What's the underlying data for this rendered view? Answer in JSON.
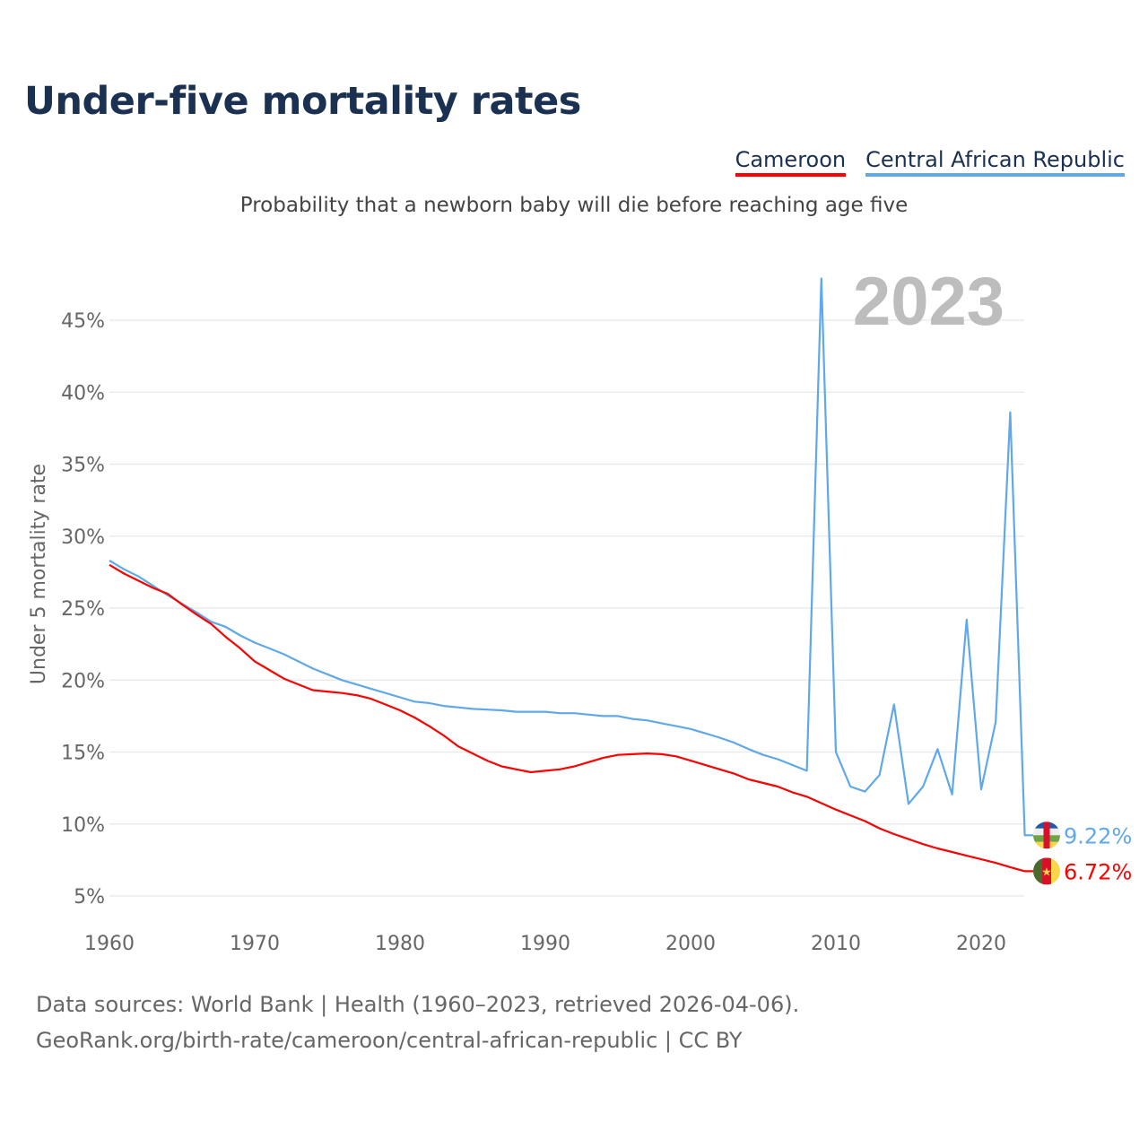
{
  "title": "Under-five mortality rates",
  "subtitle": "Probability that a newborn baby will die before reaching age five",
  "footer": {
    "line1": "Data sources: World Bank | Health (1960–2023, retrieved 2026-04-06).",
    "line2": "GeoRank.org/birth-rate/cameroon/central-african-republic | CC BY"
  },
  "chart_data": {
    "type": "line",
    "title": "Under-five mortality rates",
    "xlabel": "",
    "ylabel": "Under 5 mortality rate",
    "year_label": "2023",
    "xlim": [
      1960,
      2023
    ],
    "ylim": [
      5,
      48
    ],
    "grid": true,
    "legend_placement": "top-right",
    "x_ticks": [
      1960,
      1970,
      1980,
      1990,
      2000,
      2010,
      2020
    ],
    "y_ticks": [
      5,
      10,
      15,
      20,
      25,
      30,
      35,
      40,
      45
    ],
    "y_tick_labels": [
      "5%",
      "10%",
      "15%",
      "20%",
      "25%",
      "30%",
      "35%",
      "40%",
      "45%"
    ],
    "x": [
      1960,
      1961,
      1962,
      1963,
      1964,
      1965,
      1966,
      1967,
      1968,
      1969,
      1970,
      1971,
      1972,
      1973,
      1974,
      1975,
      1976,
      1977,
      1978,
      1979,
      1980,
      1981,
      1982,
      1983,
      1984,
      1985,
      1986,
      1987,
      1988,
      1989,
      1990,
      1991,
      1992,
      1993,
      1994,
      1995,
      1996,
      1997,
      1998,
      1999,
      2000,
      2001,
      2002,
      2003,
      2004,
      2005,
      2006,
      2007,
      2008,
      2009,
      2010,
      2011,
      2012,
      2013,
      2014,
      2015,
      2016,
      2017,
      2018,
      2019,
      2020,
      2021,
      2022,
      2023
    ],
    "series": [
      {
        "name": "Cameroon",
        "color": "#ff0000",
        "end_label": "6.72%",
        "flag": "cameroon-flag",
        "values": [
          28.0,
          27.4,
          26.9,
          26.4,
          26.0,
          25.25,
          24.55,
          23.9,
          23.0,
          22.2,
          21.3,
          20.7,
          20.1,
          19.7,
          19.3,
          19.2,
          19.1,
          18.95,
          18.7,
          18.3,
          17.9,
          17.4,
          16.8,
          16.15,
          15.4,
          14.9,
          14.4,
          14.0,
          13.8,
          13.6,
          13.7,
          13.8,
          14.0,
          14.3,
          14.6,
          14.8,
          14.85,
          14.9,
          14.85,
          14.7,
          14.4,
          14.1,
          13.8,
          13.5,
          13.1,
          12.85,
          12.6,
          12.2,
          11.9,
          11.45,
          11.0,
          10.6,
          10.2,
          9.7,
          9.3,
          8.95,
          8.6,
          8.3,
          8.05,
          7.8,
          7.55,
          7.3,
          7.0,
          6.72
        ]
      },
      {
        "name": "Central African Republic",
        "color": "#5fa8ea",
        "end_label": "9.22%",
        "flag": "central-african-republic-flag",
        "values": [
          28.3,
          27.7,
          27.2,
          26.55,
          25.9,
          25.3,
          24.7,
          24.05,
          23.7,
          23.1,
          22.6,
          22.2,
          21.8,
          21.3,
          20.8,
          20.4,
          20.0,
          19.7,
          19.4,
          19.1,
          18.8,
          18.5,
          18.4,
          18.2,
          18.1,
          18.0,
          17.95,
          17.9,
          17.8,
          17.8,
          17.8,
          17.7,
          17.7,
          17.6,
          17.5,
          17.5,
          17.3,
          17.2,
          17.0,
          16.8,
          16.6,
          16.3,
          16.0,
          15.65,
          15.2,
          14.8,
          14.5,
          14.1,
          13.7,
          47.9,
          15.0,
          12.6,
          12.25,
          13.4,
          18.3,
          11.4,
          12.6,
          15.2,
          12.05,
          24.2,
          12.4,
          17.1,
          38.6,
          9.22
        ]
      }
    ]
  }
}
